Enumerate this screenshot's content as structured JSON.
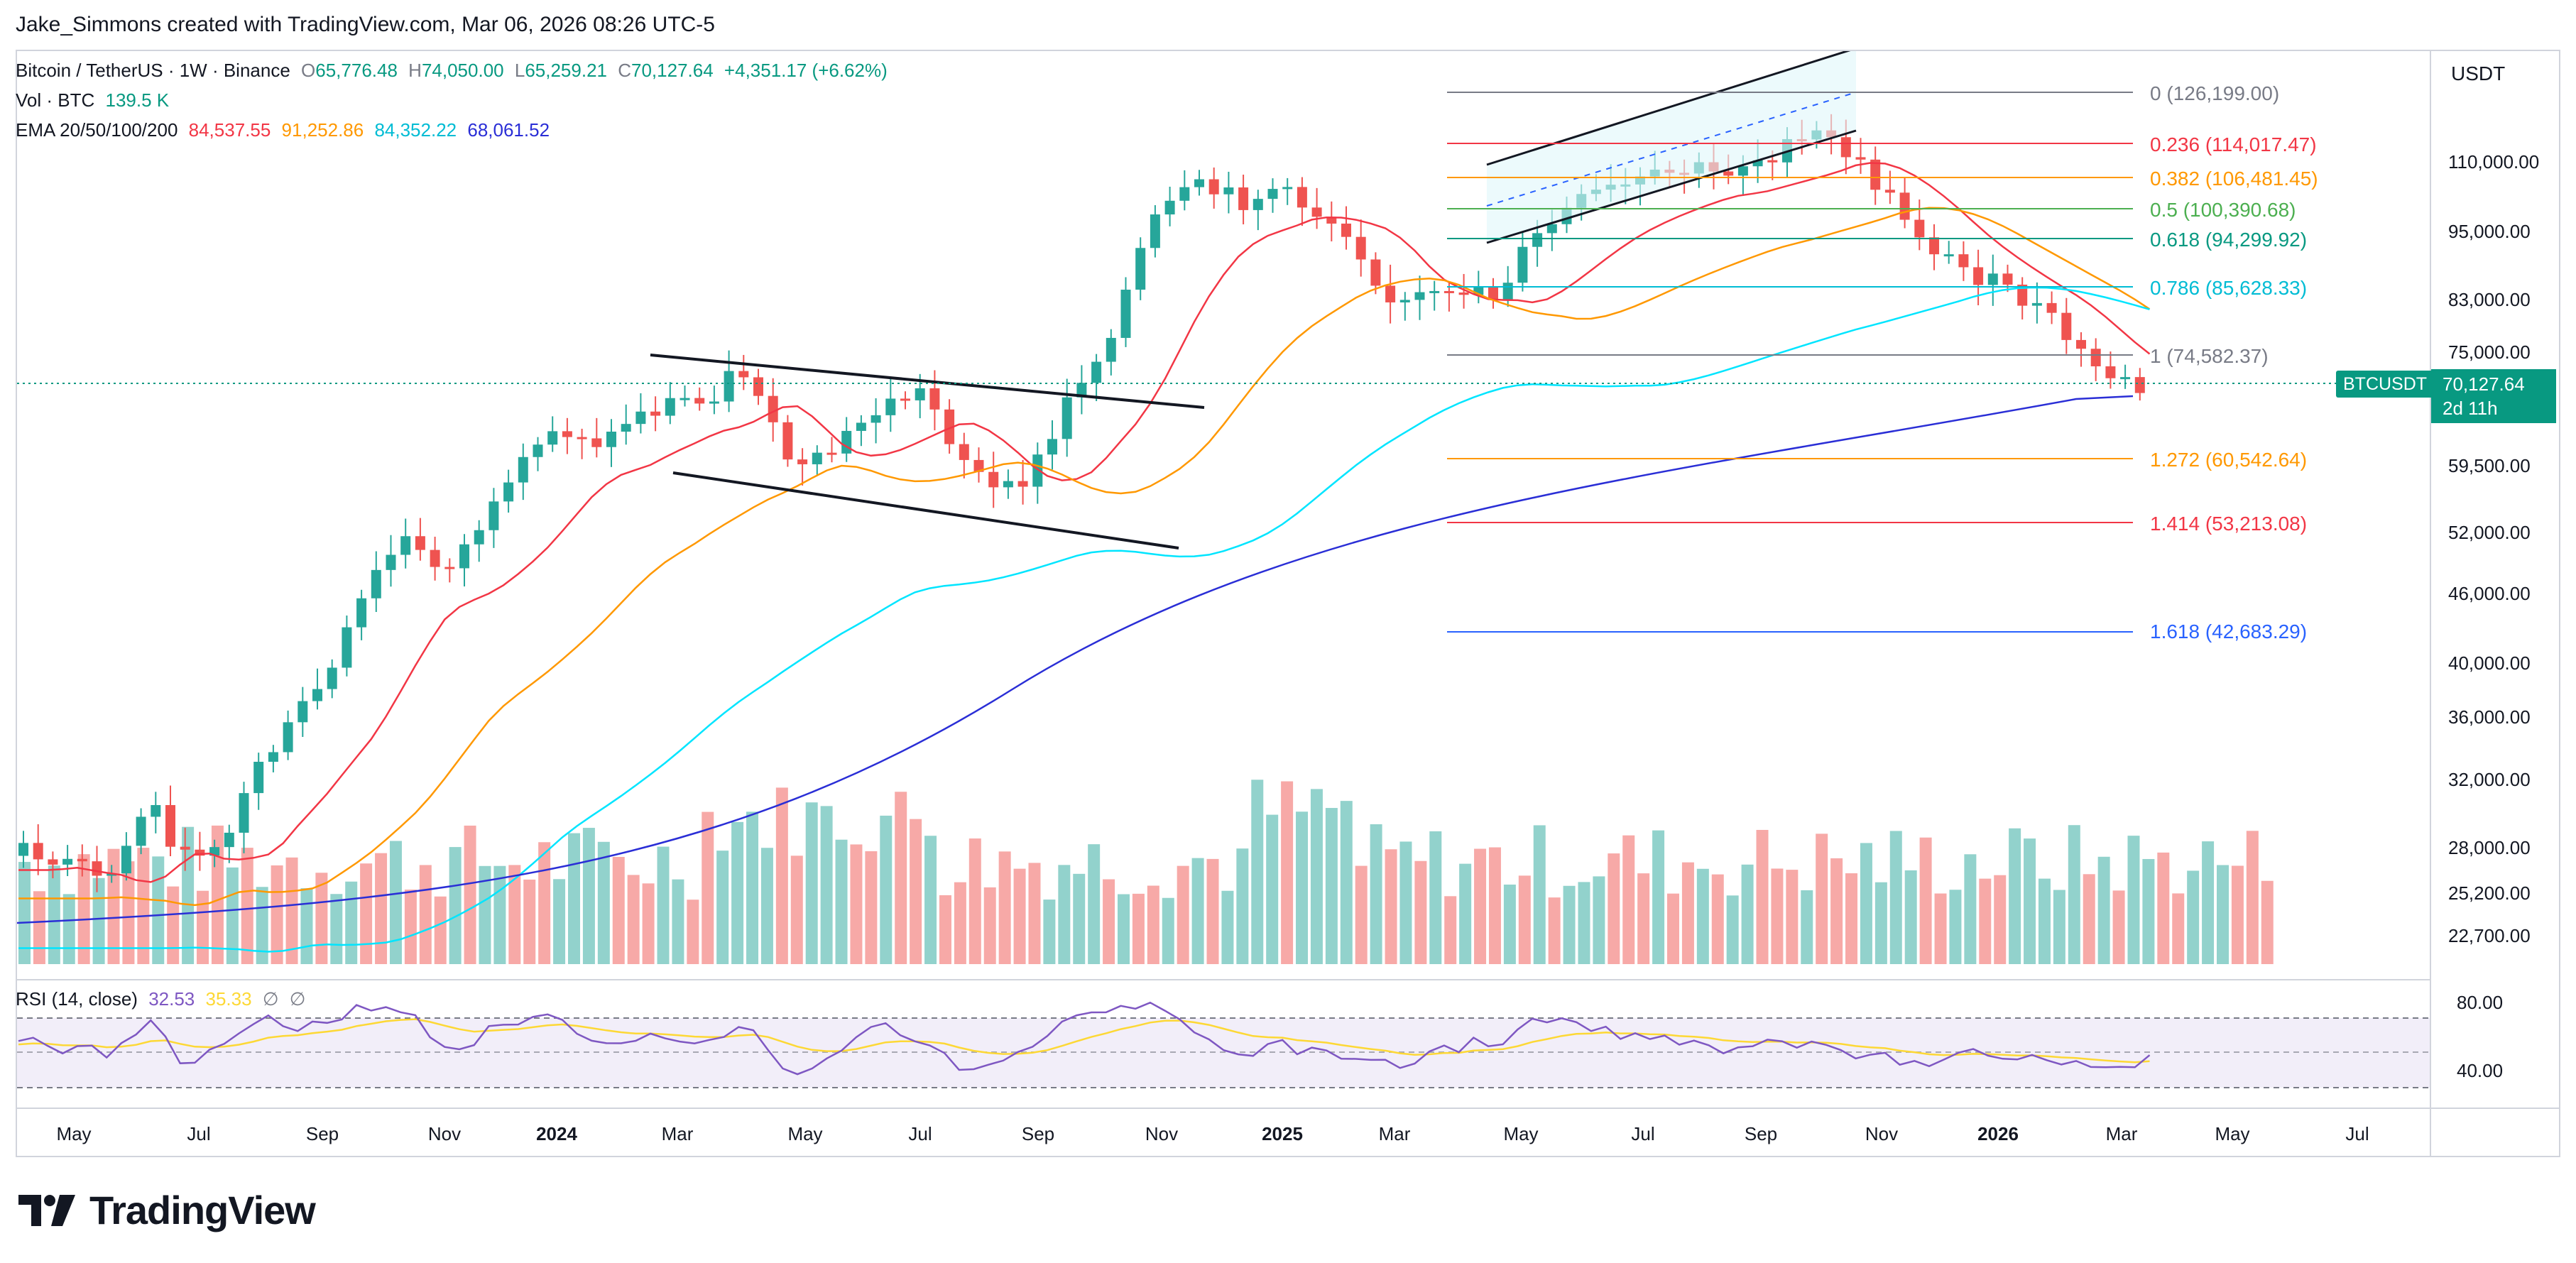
{
  "credit": "Jake_Simmons created with TradingView.com, Mar 06, 2026 08:26 UTC-5",
  "legend": {
    "symbol": "Bitcoin / TetherUS · 1W · Binance",
    "open_label": "O",
    "open": "65,776.48",
    "high_label": "H",
    "high": "74,050.00",
    "low_label": "L",
    "low": "65,259.21",
    "close_label": "C",
    "close": "70,127.64",
    "change": "+4,351.17 (+6.62%)",
    "vol_label": "Vol · BTC",
    "vol_value": "139.5 K",
    "ema_label": "EMA 20/50/100/200",
    "ema20": "84,537.55",
    "ema50": "91,252.86",
    "ema100": "84,352.22",
    "ema200": "68,061.52",
    "rsi_label": "RSI (14, close)",
    "rsi_value": "32.53",
    "rsi_ma": "35.33",
    "rsi_extra1": "∅",
    "rsi_extra2": "∅"
  },
  "currency_label": "USDT",
  "price_axis": [
    "110,000.00",
    "95,000.00",
    "83,000.00",
    "75,000.00",
    "59,500.00",
    "52,000.00",
    "46,000.00",
    "40,000.00",
    "36,000.00",
    "32,000.00",
    "28,000.00",
    "25,200.00",
    "22,700.00"
  ],
  "rsi_axis": [
    "80.00",
    "40.00"
  ],
  "time_axis": [
    "May",
    "Jul",
    "Sep",
    "Nov",
    "2024",
    "Mar",
    "May",
    "Jul",
    "Sep",
    "Nov",
    "2025",
    "Mar",
    "May",
    "Jul",
    "Sep",
    "Nov",
    "2026",
    "Mar",
    "May",
    "Jul"
  ],
  "last_price": {
    "ticker": "BTCUSDT",
    "price": "70,127.64",
    "countdown": "2d 11h"
  },
  "fib_levels": [
    {
      "label": "0 (126,199.00)",
      "color": "#787b86"
    },
    {
      "label": "0.236 (114,017.47)",
      "color": "#f23645"
    },
    {
      "label": "0.382 (106,481.45)",
      "color": "#ff9800"
    },
    {
      "label": "0.5 (100,390.68)",
      "color": "#4caf50"
    },
    {
      "label": "0.618 (94,299.92)",
      "color": "#089981"
    },
    {
      "label": "0.786 (85,628.33)",
      "color": "#00bcd4"
    },
    {
      "label": "1 (74,582.37)",
      "color": "#787b86"
    },
    {
      "label": "1.272 (60,542.64)",
      "color": "#ff9800"
    },
    {
      "label": "1.414 (53,213.08)",
      "color": "#f23645"
    },
    {
      "label": "1.618 (42,683.29)",
      "color": "#2962ff"
    }
  ],
  "brand": "TradingView",
  "colors": {
    "up": "#26a69a",
    "down": "#ef5350",
    "ema20": "#f23645",
    "ema50": "#ff9800",
    "ema100": "#00e5ff",
    "ema200": "#2a2ed6",
    "rsi": "#7e57c2",
    "rsi_ma": "#fdd835"
  },
  "icons": [
    "tradingview-logo-icon"
  ]
}
